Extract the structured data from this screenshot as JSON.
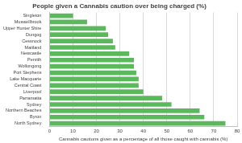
{
  "chart_data": {
    "type": "bar",
    "orientation": "horizontal",
    "title": "People given a Cannabis caution over being charged (%)",
    "x_label": "Cannabis cautions given as a percentage of all those caught with cannabis (%)",
    "categories": [
      "Singleton",
      "Muswellbrook",
      "Upper Hunter Shire",
      "Dungog",
      "Cessnock",
      "Maitland",
      "Newcastle",
      "Penrith",
      "Wollongong",
      "Port Stephens",
      "Lake Macquarie",
      "Central Coast",
      "Liverpool",
      "Parramatta",
      "Sydney",
      "Northern Beaches",
      "Byron",
      "North Sydney"
    ],
    "values": [
      10,
      16,
      24,
      25,
      27,
      28,
      34,
      36,
      36,
      37,
      38,
      38,
      40,
      48,
      52,
      64,
      66,
      75
    ],
    "color": "#5cb85c",
    "xlim": [
      0,
      80
    ],
    "xticks": [
      0,
      10,
      20,
      30,
      40,
      50,
      60,
      70,
      80
    ],
    "grid": true
  }
}
